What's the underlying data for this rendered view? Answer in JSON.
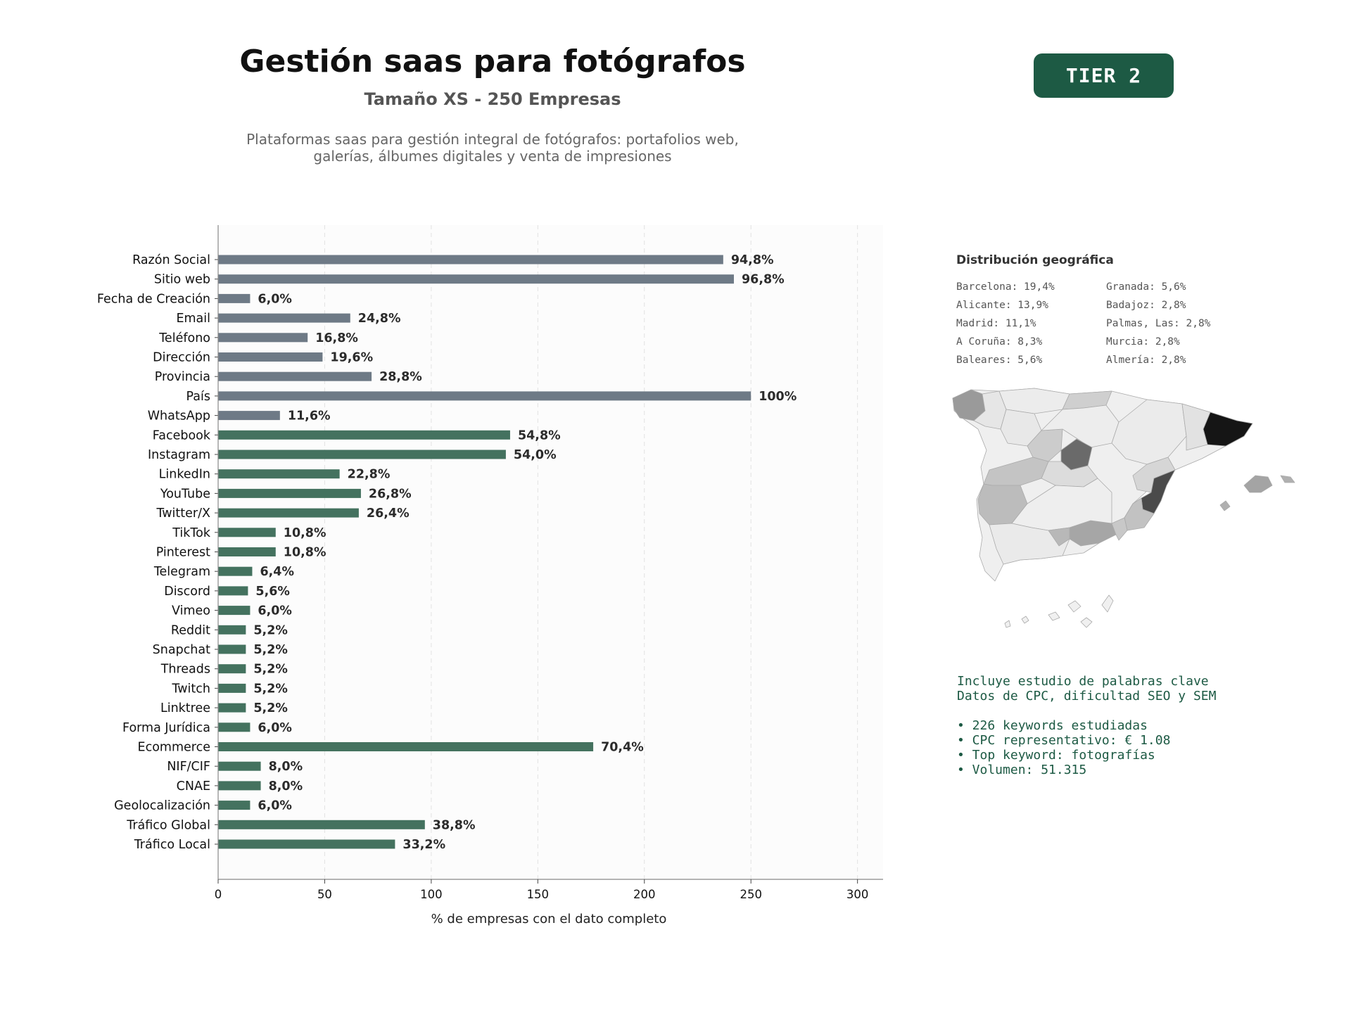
{
  "header": {
    "title": "Gestión saas para fotógrafos",
    "subtitle": "Tamaño XS - 250 Empresas",
    "description_line1": "Plataformas saas para gestión integral de fotógrafos: portafolios web,",
    "description_line2": "galerías, álbumes digitales y venta de impresiones",
    "tier": "TIER 2"
  },
  "colors": {
    "gray_bar": "#6e7a86",
    "green_bar": "#44725f",
    "accent": "#1d5a44"
  },
  "chart_data": {
    "type": "bar",
    "orientation": "horizontal",
    "xlabel": "% de empresas con el dato completo",
    "ylabel": "",
    "xlim": [
      0,
      312
    ],
    "xticks": [
      0,
      50,
      100,
      150,
      200,
      250,
      300
    ],
    "grid": "vertical dashed",
    "categories": [
      "Razón Social",
      "Sitio web",
      "Fecha de Creación",
      "Email",
      "Teléfono",
      "Dirección",
      "Provincia",
      "País",
      "WhatsApp",
      "Facebook",
      "Instagram",
      "LinkedIn",
      "YouTube",
      "Twitter/X",
      "TikTok",
      "Pinterest",
      "Telegram",
      "Discord",
      "Vimeo",
      "Reddit",
      "Snapchat",
      "Threads",
      "Twitch",
      "Linktree",
      "Forma Jurídica",
      "Ecommerce",
      "NIF/CIF",
      "CNAE",
      "Geolocalización",
      "Tráfico Global",
      "Tráfico Local"
    ],
    "values": [
      237,
      242,
      15,
      62,
      42,
      49,
      72,
      250,
      29,
      137,
      135,
      57,
      67,
      66,
      27,
      27,
      16,
      14,
      15,
      13,
      13,
      13,
      13,
      13,
      15,
      176,
      20,
      20,
      15,
      97,
      83
    ],
    "value_labels": [
      "94,8%",
      "96,8%",
      "6,0%",
      "24,8%",
      "16,8%",
      "19,6%",
      "28,8%",
      "100%",
      "11,6%",
      "54,8%",
      "54,0%",
      "22,8%",
      "26,8%",
      "26,4%",
      "10,8%",
      "10,8%",
      "6,4%",
      "5,6%",
      "6,0%",
      "5,2%",
      "5,2%",
      "5,2%",
      "5,2%",
      "5,2%",
      "6,0%",
      "70,4%",
      "8,0%",
      "8,0%",
      "6,0%",
      "38,8%",
      "33,2%"
    ],
    "groups": [
      "gray",
      "gray",
      "gray",
      "gray",
      "gray",
      "gray",
      "gray",
      "gray",
      "gray",
      "green",
      "green",
      "green",
      "green",
      "green",
      "green",
      "green",
      "green",
      "green",
      "green",
      "green",
      "green",
      "green",
      "green",
      "green",
      "green",
      "green",
      "green",
      "green",
      "green",
      "green",
      "green"
    ]
  },
  "geo": {
    "title": "Distribución geográfica",
    "items": [
      "Barcelona: 19,4%",
      "Granada: 5,6%",
      "Alicante: 13,9%",
      "Badajoz: 2,8%",
      "Madrid: 11,1%",
      "Palmas, Las: 2,8%",
      "A Coruña: 8,3%",
      "Murcia: 2,8%",
      "Baleares: 5,6%",
      "Almería: 2,8%"
    ]
  },
  "keywords": {
    "line1": "Incluye estudio de palabras clave",
    "line2": "Datos de CPC, dificultad SEO y SEM",
    "bullets": [
      "• 226 keywords estudiadas",
      "• CPC representativo: € 1.08",
      "• Top keyword: fotografías",
      "• Volumen: 51.315"
    ]
  }
}
